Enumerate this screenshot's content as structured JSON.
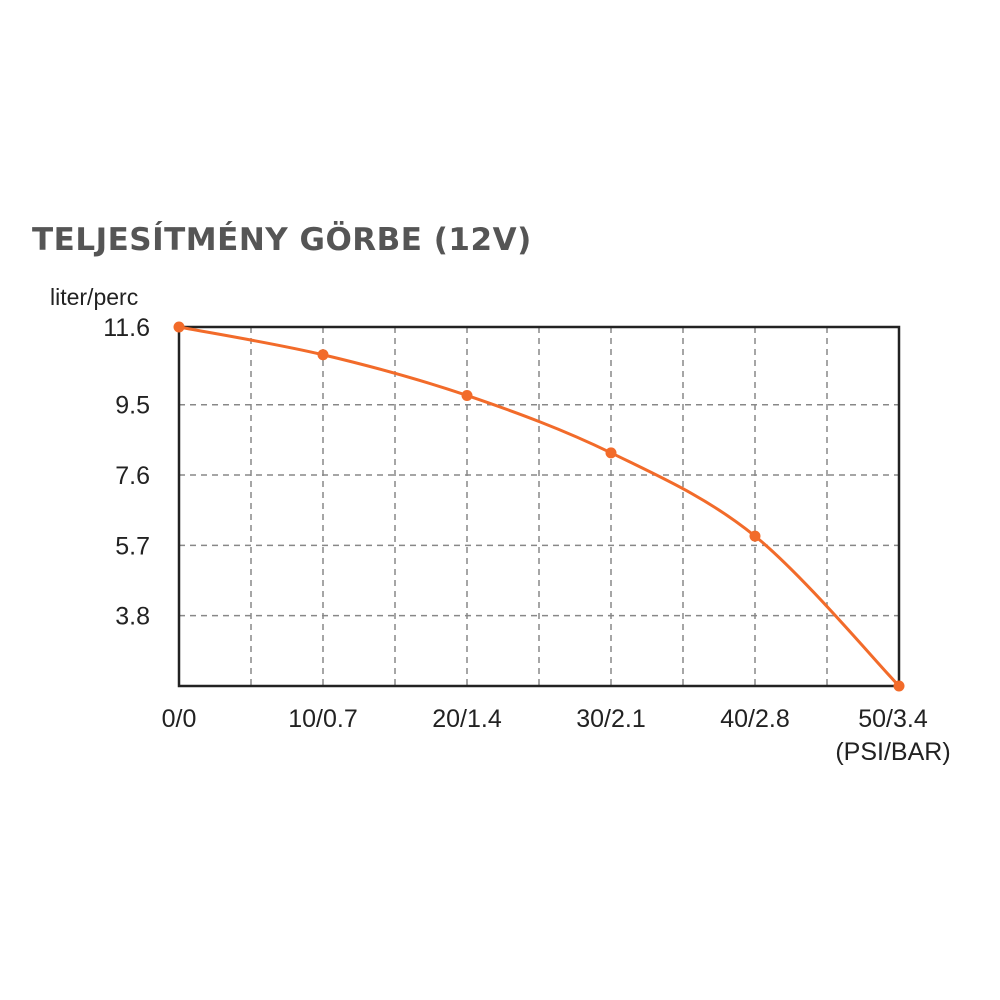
{
  "title": "TELJESÍTMÉNY GÖRBE (12V)",
  "colors": {
    "line": "#f26b2a",
    "grid": "#888888",
    "frame": "#222222",
    "title": "#555555"
  },
  "chart_data": {
    "type": "line",
    "title": "TELJESÍTMÉNY GÖRBE (12V)",
    "ylabel": "liter/perc",
    "xlabel": "(PSI/BAR)",
    "x_tick_labels": [
      "0/0",
      "10/0.7",
      "20/1.4",
      "30/2.1",
      "40/2.8",
      "50/3.4"
    ],
    "y_tick_labels": [
      "11.6",
      "9.5",
      "7.6",
      "5.7",
      "3.8"
    ],
    "x_tick_values": [
      0,
      10,
      20,
      30,
      40,
      50
    ],
    "y_tick_values": [
      11.6,
      9.5,
      7.6,
      5.7,
      3.8
    ],
    "xlim": [
      0,
      50
    ],
    "ylim": [
      1.9,
      11.6
    ],
    "grid": true,
    "grid_style": "dashed",
    "series": [
      {
        "x": [
          0,
          10,
          20,
          30,
          40,
          50
        ],
        "y": [
          11.6,
          10.85,
          9.75,
          8.2,
          5.95,
          1.9
        ]
      }
    ]
  }
}
